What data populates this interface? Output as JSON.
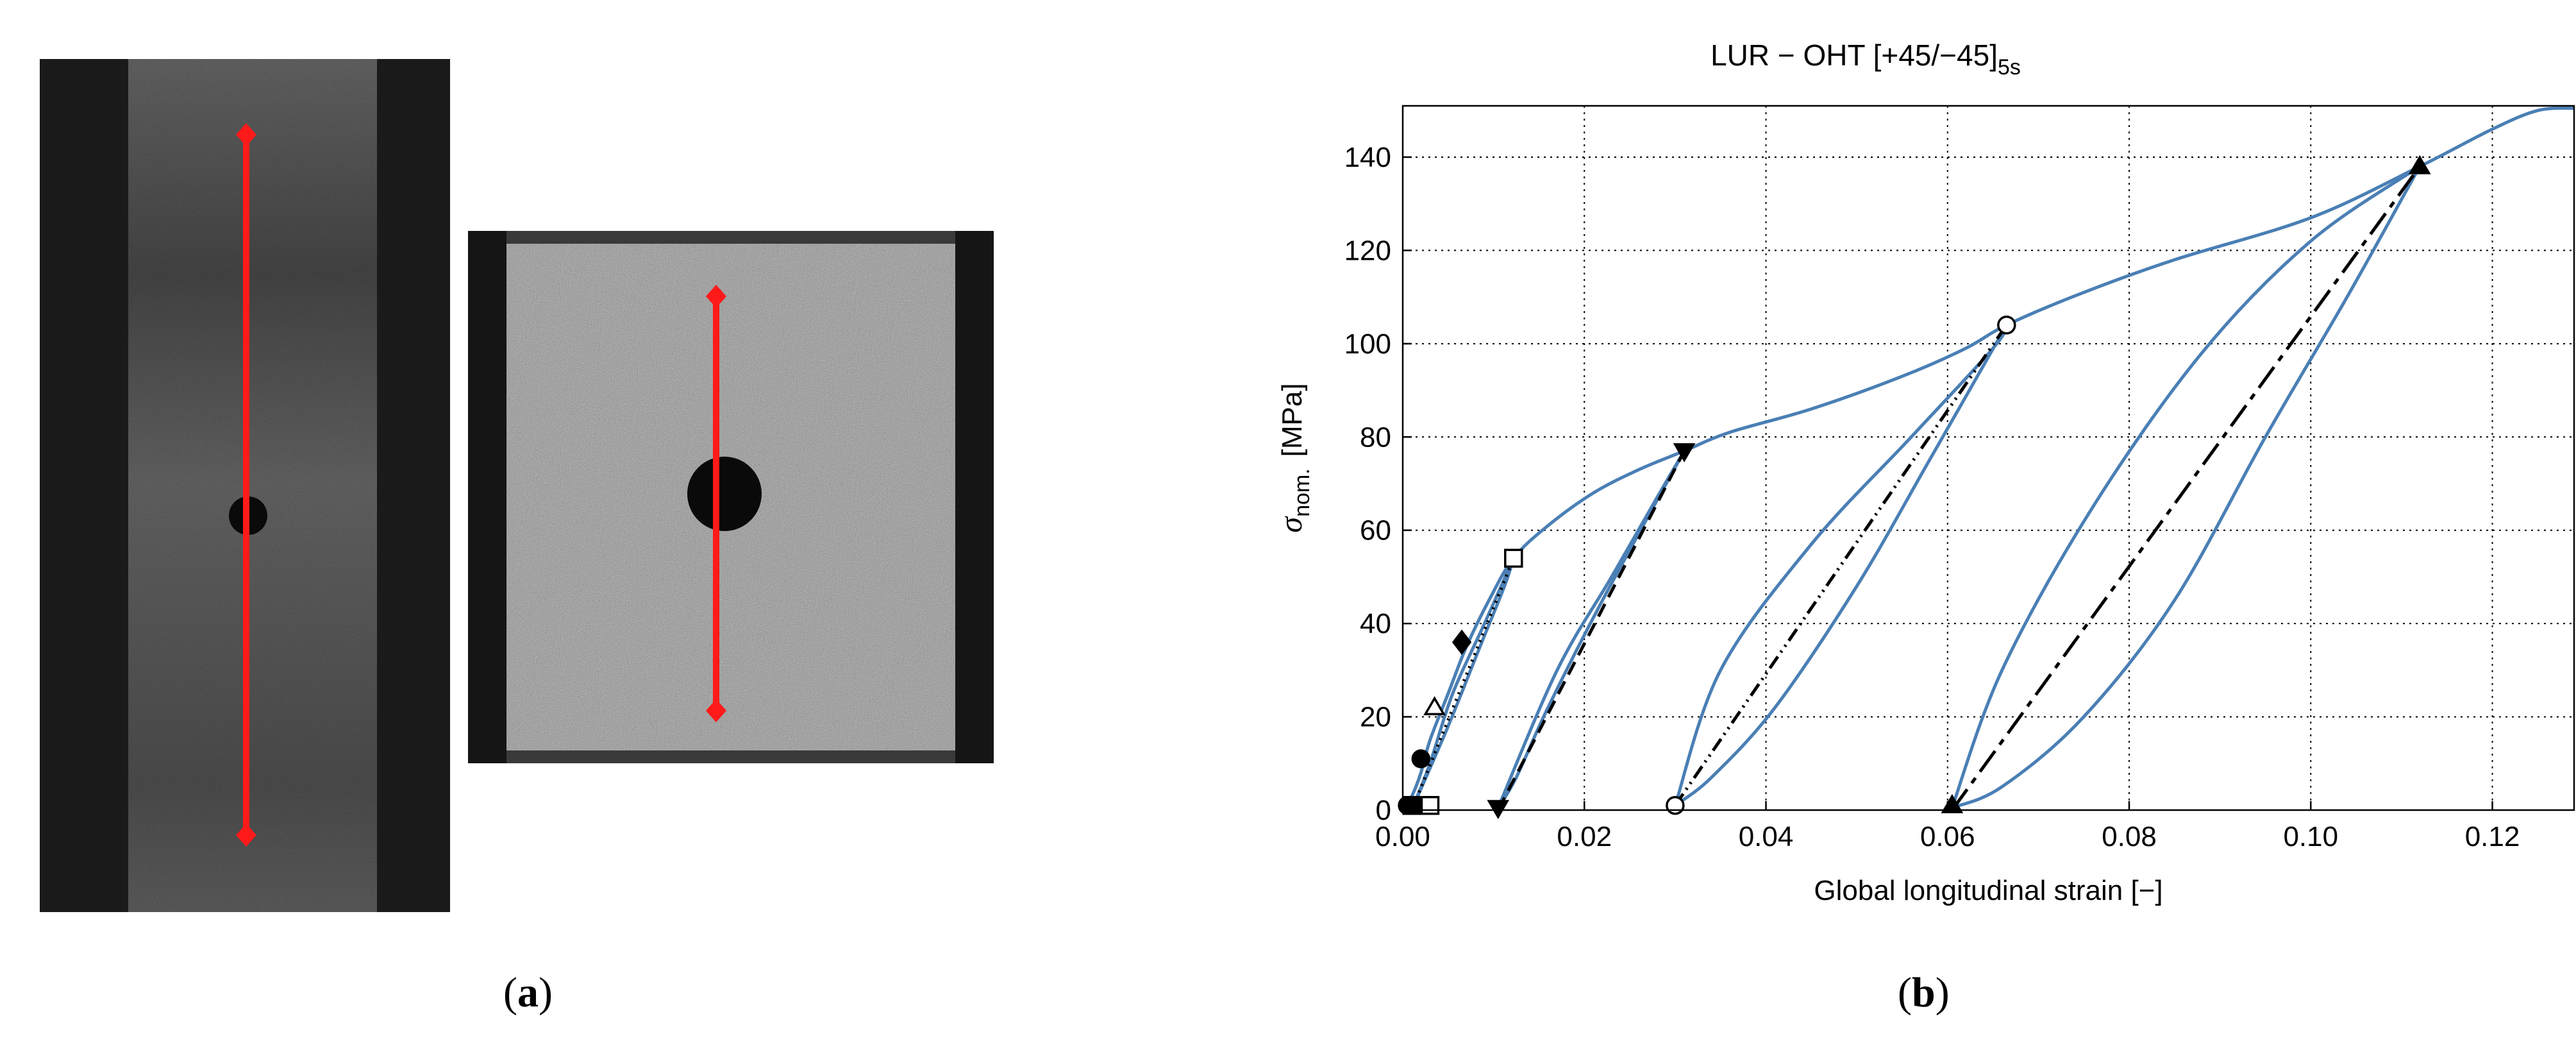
{
  "figure": {
    "panel_a_label": "a",
    "panel_b_label": "b"
  },
  "photos": {
    "long_specimen": {
      "description_icon": "specimen-photo",
      "marker_color": "#ff1a1a"
    },
    "short_specimen": {
      "description_icon": "specimen-photo",
      "marker_color": "#ff1a1a"
    }
  },
  "chart_data": {
    "type": "line",
    "title_main": "LUR − OHT  [+45/−45]",
    "title_sub": "5s",
    "xlabel": "Global longitudinal strain [−]",
    "ylabel_symbol": "σ",
    "ylabel_sub": "nom.",
    "ylabel_unit": "[MPa]",
    "xlim": [
      0.0,
      0.129
    ],
    "ylim": [
      0,
      151
    ],
    "xticks": [
      0.0,
      0.02,
      0.04,
      0.06,
      0.08,
      0.1,
      0.12
    ],
    "xtick_labels": [
      "0.00",
      "0.02",
      "0.04",
      "0.06",
      "0.08",
      "0.10",
      "0.12"
    ],
    "yticks": [
      0,
      20,
      40,
      60,
      80,
      100,
      120,
      140
    ],
    "ytick_labels": [
      "0",
      "20",
      "40",
      "60",
      "80",
      "100",
      "120",
      "140"
    ],
    "grid": true,
    "curve_color": "#4a7fb5",
    "envelope": [
      [
        0.0,
        0
      ],
      [
        0.001,
        3
      ],
      [
        0.002,
        8
      ],
      [
        0.003,
        15
      ],
      [
        0.005,
        25
      ],
      [
        0.007,
        35
      ],
      [
        0.0095,
        45
      ],
      [
        0.0122,
        54
      ],
      [
        0.016,
        61
      ],
      [
        0.021,
        68
      ],
      [
        0.026,
        73
      ],
      [
        0.031,
        77
      ],
      [
        0.036,
        81
      ],
      [
        0.045,
        86
      ],
      [
        0.055,
        93
      ],
      [
        0.062,
        99
      ],
      [
        0.0665,
        104
      ],
      [
        0.075,
        111
      ],
      [
        0.085,
        118
      ],
      [
        0.1,
        127
      ],
      [
        0.112,
        138
      ],
      [
        0.12,
        146
      ],
      [
        0.125,
        150
      ],
      [
        0.129,
        150.5
      ]
    ],
    "loops": [
      {
        "unload": [
          [
            0.0122,
            54
          ],
          [
            0.009,
            40
          ],
          [
            0.0055,
            25
          ],
          [
            0.003,
            10
          ],
          [
            0.0012,
            1
          ]
        ],
        "reload": [
          [
            0.0012,
            1
          ],
          [
            0.005,
            18
          ],
          [
            0.0085,
            35
          ],
          [
            0.0112,
            48
          ],
          [
            0.0122,
            54
          ]
        ]
      },
      {
        "unload": [
          [
            0.031,
            77
          ],
          [
            0.022,
            45
          ],
          [
            0.016,
            22
          ],
          [
            0.0125,
            7
          ],
          [
            0.0105,
            0.5
          ]
        ],
        "reload": [
          [
            0.0105,
            0.5
          ],
          [
            0.017,
            30
          ],
          [
            0.023,
            50
          ],
          [
            0.028,
            67
          ],
          [
            0.031,
            77
          ]
        ]
      },
      {
        "unload": [
          [
            0.0665,
            104
          ],
          [
            0.058,
            75
          ],
          [
            0.05,
            48
          ],
          [
            0.041,
            22
          ],
          [
            0.034,
            7
          ],
          [
            0.03,
            1
          ]
        ],
        "reload": [
          [
            0.03,
            1
          ],
          [
            0.035,
            30
          ],
          [
            0.045,
            57
          ],
          [
            0.056,
            80
          ],
          [
            0.065,
            99
          ],
          [
            0.0665,
            104
          ]
        ]
      },
      {
        "unload": [
          [
            0.112,
            138
          ],
          [
            0.104,
            110
          ],
          [
            0.095,
            80
          ],
          [
            0.085,
            45
          ],
          [
            0.075,
            20
          ],
          [
            0.066,
            5
          ],
          [
            0.0605,
            0.5
          ]
        ],
        "reload": [
          [
            0.0605,
            0.5
          ],
          [
            0.066,
            30
          ],
          [
            0.076,
            65
          ],
          [
            0.088,
            98
          ],
          [
            0.1,
            122
          ],
          [
            0.112,
            138
          ]
        ]
      }
    ],
    "secants": [
      {
        "style": "dotted",
        "from": [
          0.0012,
          1
        ],
        "to": [
          0.0122,
          54
        ]
      },
      {
        "style": "dashed",
        "from": [
          0.0105,
          0
        ],
        "to": [
          0.031,
          77
        ]
      },
      {
        "style": "dashdotdot",
        "from": [
          0.03,
          1
        ],
        "to": [
          0.0665,
          104
        ]
      },
      {
        "style": "longdash",
        "from": [
          0.0605,
          0
        ],
        "to": [
          0.112,
          138
        ]
      }
    ],
    "markers": [
      {
        "shape": "circle-filled",
        "x": 0.0005,
        "y": 1
      },
      {
        "shape": "square-filled",
        "x": 0.001,
        "y": 1
      },
      {
        "shape": "circle-filled",
        "x": 0.002,
        "y": 11
      },
      {
        "shape": "triangle-open",
        "x": 0.0035,
        "y": 22
      },
      {
        "shape": "diamond-filled",
        "x": 0.0065,
        "y": 36
      },
      {
        "shape": "square-open",
        "x": 0.003,
        "y": 1
      },
      {
        "shape": "square-open",
        "x": 0.0122,
        "y": 54
      },
      {
        "shape": "triangle-down-filled",
        "x": 0.0105,
        "y": 0.5
      },
      {
        "shape": "triangle-down-filled",
        "x": 0.031,
        "y": 77
      },
      {
        "shape": "circle-open",
        "x": 0.03,
        "y": 1
      },
      {
        "shape": "circle-open",
        "x": 0.0665,
        "y": 104
      },
      {
        "shape": "triangle-up-filled",
        "x": 0.0605,
        "y": 1
      },
      {
        "shape": "triangle-up-filled",
        "x": 0.112,
        "y": 138
      }
    ]
  }
}
